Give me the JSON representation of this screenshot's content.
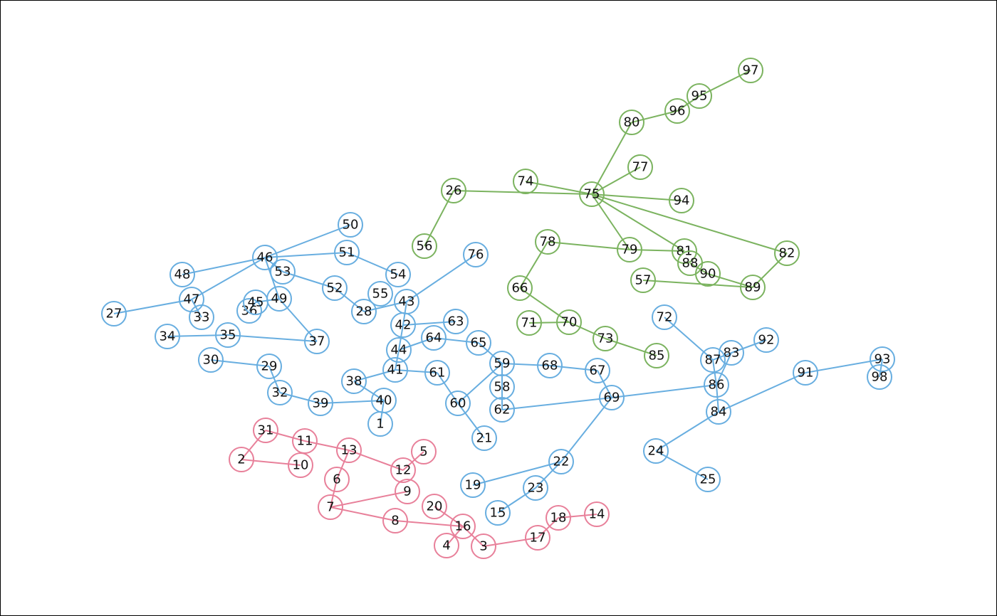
{
  "groups": [
    {
      "name": "pink",
      "color": "#E8809A"
    },
    {
      "name": "blue",
      "color": "#68AEE0"
    },
    {
      "name": "green",
      "color": "#7BB35F"
    }
  ],
  "nodes": [
    {
      "id": "1",
      "group": "blue"
    },
    {
      "id": "2",
      "group": "pink"
    },
    {
      "id": "3",
      "group": "pink"
    },
    {
      "id": "4",
      "group": "pink"
    },
    {
      "id": "5",
      "group": "pink"
    },
    {
      "id": "6",
      "group": "pink"
    },
    {
      "id": "7",
      "group": "pink"
    },
    {
      "id": "8",
      "group": "pink"
    },
    {
      "id": "9",
      "group": "pink"
    },
    {
      "id": "10",
      "group": "pink"
    },
    {
      "id": "11",
      "group": "pink"
    },
    {
      "id": "12",
      "group": "pink"
    },
    {
      "id": "13",
      "group": "pink"
    },
    {
      "id": "14",
      "group": "pink"
    },
    {
      "id": "15",
      "group": "blue"
    },
    {
      "id": "16",
      "group": "pink"
    },
    {
      "id": "17",
      "group": "pink"
    },
    {
      "id": "18",
      "group": "pink"
    },
    {
      "id": "19",
      "group": "blue"
    },
    {
      "id": "20",
      "group": "pink"
    },
    {
      "id": "21",
      "group": "blue"
    },
    {
      "id": "22",
      "group": "blue"
    },
    {
      "id": "23",
      "group": "blue"
    },
    {
      "id": "24",
      "group": "blue"
    },
    {
      "id": "25",
      "group": "blue"
    },
    {
      "id": "26",
      "group": "green"
    },
    {
      "id": "27",
      "group": "blue"
    },
    {
      "id": "28",
      "group": "blue"
    },
    {
      "id": "29",
      "group": "blue"
    },
    {
      "id": "30",
      "group": "blue"
    },
    {
      "id": "31",
      "group": "pink"
    },
    {
      "id": "32",
      "group": "blue"
    },
    {
      "id": "33",
      "group": "blue"
    },
    {
      "id": "34",
      "group": "blue"
    },
    {
      "id": "35",
      "group": "blue"
    },
    {
      "id": "36",
      "group": "blue"
    },
    {
      "id": "37",
      "group": "blue"
    },
    {
      "id": "38",
      "group": "blue"
    },
    {
      "id": "39",
      "group": "blue"
    },
    {
      "id": "40",
      "group": "blue"
    },
    {
      "id": "41",
      "group": "blue"
    },
    {
      "id": "42",
      "group": "blue"
    },
    {
      "id": "43",
      "group": "blue"
    },
    {
      "id": "44",
      "group": "blue"
    },
    {
      "id": "45",
      "group": "blue"
    },
    {
      "id": "46",
      "group": "blue"
    },
    {
      "id": "47",
      "group": "blue"
    },
    {
      "id": "48",
      "group": "blue"
    },
    {
      "id": "49",
      "group": "blue"
    },
    {
      "id": "50",
      "group": "blue"
    },
    {
      "id": "51",
      "group": "blue"
    },
    {
      "id": "52",
      "group": "blue"
    },
    {
      "id": "53",
      "group": "blue"
    },
    {
      "id": "54",
      "group": "blue"
    },
    {
      "id": "55",
      "group": "blue"
    },
    {
      "id": "56",
      "group": "green"
    },
    {
      "id": "57",
      "group": "green"
    },
    {
      "id": "58",
      "group": "blue"
    },
    {
      "id": "59",
      "group": "blue"
    },
    {
      "id": "60",
      "group": "blue"
    },
    {
      "id": "61",
      "group": "blue"
    },
    {
      "id": "62",
      "group": "blue"
    },
    {
      "id": "63",
      "group": "blue"
    },
    {
      "id": "64",
      "group": "blue"
    },
    {
      "id": "65",
      "group": "blue"
    },
    {
      "id": "66",
      "group": "green"
    },
    {
      "id": "67",
      "group": "blue"
    },
    {
      "id": "68",
      "group": "blue"
    },
    {
      "id": "69",
      "group": "blue"
    },
    {
      "id": "70",
      "group": "green"
    },
    {
      "id": "71",
      "group": "green"
    },
    {
      "id": "72",
      "group": "blue"
    },
    {
      "id": "73",
      "group": "green"
    },
    {
      "id": "74",
      "group": "green"
    },
    {
      "id": "75",
      "group": "green"
    },
    {
      "id": "76",
      "group": "blue"
    },
    {
      "id": "77",
      "group": "green"
    },
    {
      "id": "78",
      "group": "green"
    },
    {
      "id": "79",
      "group": "green"
    },
    {
      "id": "80",
      "group": "green"
    },
    {
      "id": "81",
      "group": "green"
    },
    {
      "id": "82",
      "group": "green"
    },
    {
      "id": "83",
      "group": "blue"
    },
    {
      "id": "84",
      "group": "blue"
    },
    {
      "id": "85",
      "group": "green"
    },
    {
      "id": "86",
      "group": "blue"
    },
    {
      "id": "87",
      "group": "blue"
    },
    {
      "id": "88",
      "group": "green"
    },
    {
      "id": "89",
      "group": "green"
    },
    {
      "id": "90",
      "group": "green"
    },
    {
      "id": "91",
      "group": "blue"
    },
    {
      "id": "92",
      "group": "blue"
    },
    {
      "id": "93",
      "group": "blue"
    },
    {
      "id": "94",
      "group": "green"
    },
    {
      "id": "95",
      "group": "green"
    },
    {
      "id": "96",
      "group": "green"
    },
    {
      "id": "97",
      "group": "green"
    },
    {
      "id": "98",
      "group": "blue"
    }
  ],
  "edges": [
    [
      "31",
      "2"
    ],
    [
      "31",
      "11"
    ],
    [
      "2",
      "10"
    ],
    [
      "11",
      "13"
    ],
    [
      "13",
      "12"
    ],
    [
      "12",
      "5"
    ],
    [
      "13",
      "6"
    ],
    [
      "6",
      "7"
    ],
    [
      "7",
      "9"
    ],
    [
      "7",
      "8"
    ],
    [
      "8",
      "16"
    ],
    [
      "20",
      "16"
    ],
    [
      "16",
      "4"
    ],
    [
      "16",
      "3"
    ],
    [
      "3",
      "17"
    ],
    [
      "17",
      "18"
    ],
    [
      "18",
      "14"
    ],
    [
      "40",
      "1"
    ],
    [
      "38",
      "40"
    ],
    [
      "38",
      "41"
    ],
    [
      "41",
      "61"
    ],
    [
      "41",
      "44"
    ],
    [
      "44",
      "42"
    ],
    [
      "44",
      "64"
    ],
    [
      "42",
      "63"
    ],
    [
      "42",
      "43"
    ],
    [
      "43",
      "76"
    ],
    [
      "43",
      "28"
    ],
    [
      "28",
      "52"
    ],
    [
      "52",
      "53"
    ],
    [
      "53",
      "46"
    ],
    [
      "46",
      "50"
    ],
    [
      "46",
      "51"
    ],
    [
      "51",
      "54"
    ],
    [
      "46",
      "48"
    ],
    [
      "46",
      "47"
    ],
    [
      "47",
      "27"
    ],
    [
      "47",
      "33"
    ],
    [
      "46",
      "49"
    ],
    [
      "49",
      "45"
    ],
    [
      "45",
      "36"
    ],
    [
      "49",
      "37"
    ],
    [
      "35",
      "37"
    ],
    [
      "34",
      "35"
    ],
    [
      "30",
      "29"
    ],
    [
      "29",
      "32"
    ],
    [
      "32",
      "39"
    ],
    [
      "39",
      "40"
    ],
    [
      "64",
      "65"
    ],
    [
      "65",
      "59"
    ],
    [
      "59",
      "58"
    ],
    [
      "58",
      "62"
    ],
    [
      "59",
      "60"
    ],
    [
      "59",
      "68"
    ],
    [
      "68",
      "67"
    ],
    [
      "67",
      "69"
    ],
    [
      "61",
      "60"
    ],
    [
      "60",
      "21"
    ],
    [
      "62",
      "69"
    ],
    [
      "69",
      "86"
    ],
    [
      "69",
      "22"
    ],
    [
      "22",
      "19"
    ],
    [
      "22",
      "23"
    ],
    [
      "23",
      "15"
    ],
    [
      "72",
      "87"
    ],
    [
      "87",
      "83"
    ],
    [
      "83",
      "92"
    ],
    [
      "83",
      "86"
    ],
    [
      "87",
      "86"
    ],
    [
      "86",
      "84"
    ],
    [
      "84",
      "91"
    ],
    [
      "91",
      "93"
    ],
    [
      "93",
      "98"
    ],
    [
      "84",
      "24"
    ],
    [
      "24",
      "25"
    ],
    [
      "26",
      "56"
    ],
    [
      "26",
      "75"
    ],
    [
      "74",
      "75"
    ],
    [
      "75",
      "80"
    ],
    [
      "80",
      "96"
    ],
    [
      "96",
      "95"
    ],
    [
      "95",
      "97"
    ],
    [
      "75",
      "77"
    ],
    [
      "75",
      "94"
    ],
    [
      "75",
      "79"
    ],
    [
      "75",
      "81"
    ],
    [
      "75",
      "82"
    ],
    [
      "82",
      "89"
    ],
    [
      "90",
      "89"
    ],
    [
      "88",
      "90"
    ],
    [
      "57",
      "89"
    ],
    [
      "78",
      "79"
    ],
    [
      "79",
      "81"
    ],
    [
      "78",
      "66"
    ],
    [
      "66",
      "70"
    ],
    [
      "71",
      "70"
    ],
    [
      "70",
      "73"
    ],
    [
      "73",
      "85"
    ]
  ]
}
